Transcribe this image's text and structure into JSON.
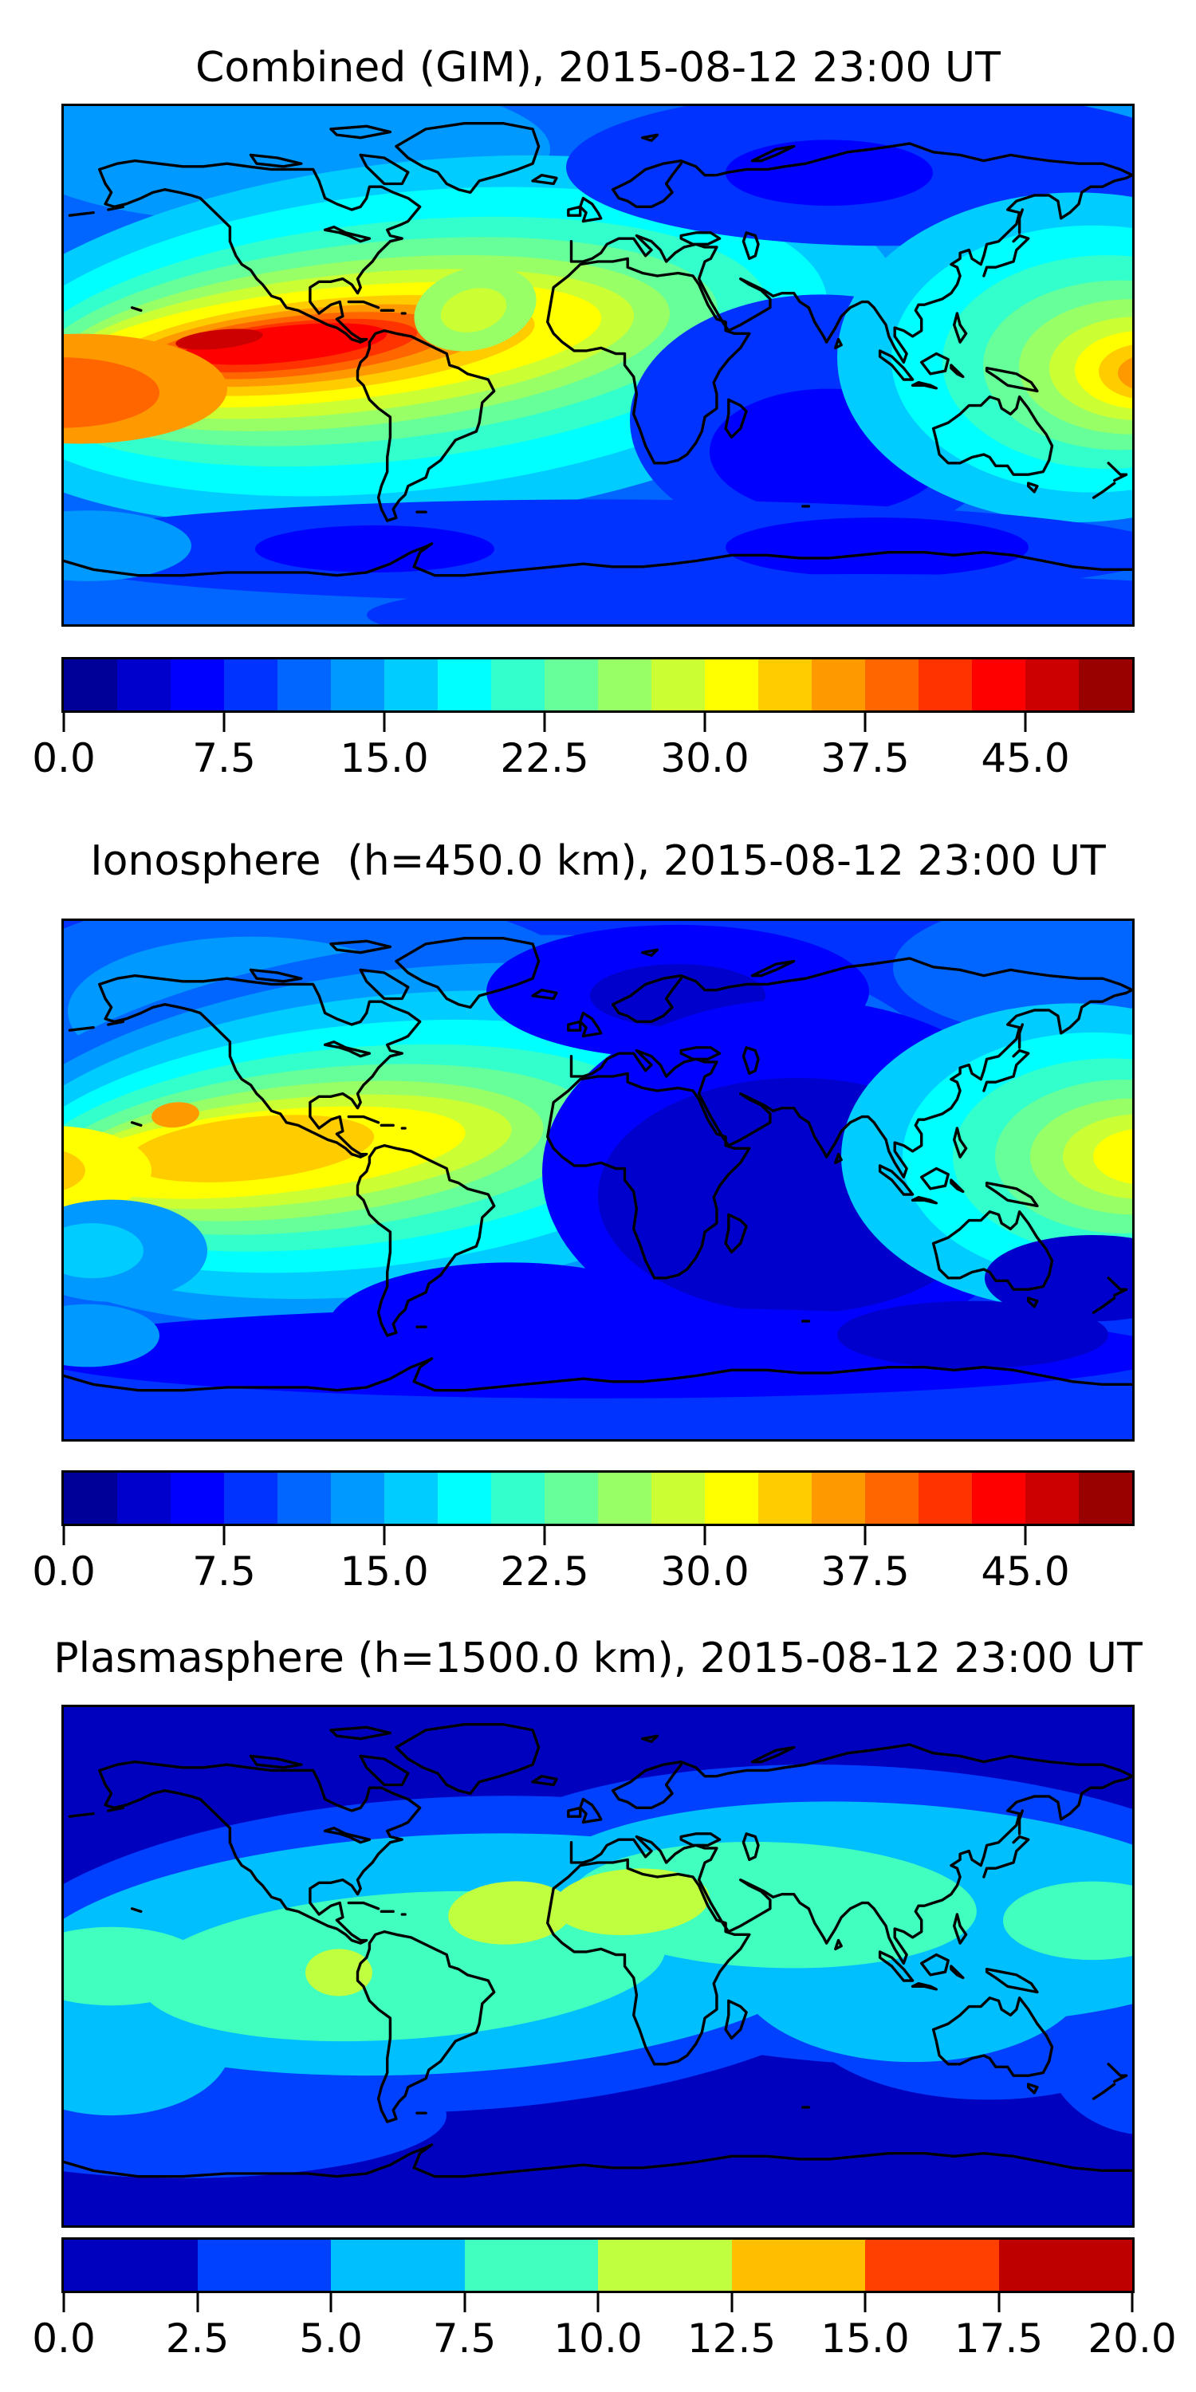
{
  "figure": {
    "background_color": "#ffffff",
    "colormap": "jet",
    "map_outline_color": "#000000"
  },
  "panels": [
    {
      "title": "Combined (GIM), 2015-08-12 23:00 UT",
      "colorbar": {
        "min": 0,
        "max": 50,
        "tick_values": [
          0,
          7.5,
          15,
          22.5,
          30,
          37.5,
          45
        ],
        "tick_labels": [
          "0.0",
          "7.5",
          "15.0",
          "22.5",
          "30.0",
          "37.5",
          "45.0"
        ],
        "n_segments": 20,
        "segment_colors": [
          "#000099",
          "#0000cc",
          "#0000ff",
          "#0033ff",
          "#0066ff",
          "#0099ff",
          "#00ccff",
          "#00ffff",
          "#33ffcc",
          "#66ff99",
          "#99ff66",
          "#ccff33",
          "#ffff00",
          "#ffcc00",
          "#ff9900",
          "#ff6600",
          "#ff3300",
          "#ff0000",
          "#cc0000",
          "#990000"
        ]
      }
    },
    {
      "title": "Ionosphere  (h=450.0 km), 2015-08-12 23:00 UT",
      "colorbar": {
        "min": 0,
        "max": 50,
        "tick_values": [
          0,
          7.5,
          15,
          22.5,
          30,
          37.5,
          45
        ],
        "tick_labels": [
          "0.0",
          "7.5",
          "15.0",
          "22.5",
          "30.0",
          "37.5",
          "45.0"
        ],
        "n_segments": 20,
        "segment_colors": [
          "#000099",
          "#0000cc",
          "#0000ff",
          "#0033ff",
          "#0066ff",
          "#0099ff",
          "#00ccff",
          "#00ffff",
          "#33ffcc",
          "#66ff99",
          "#99ff66",
          "#ccff33",
          "#ffff00",
          "#ffcc00",
          "#ff9900",
          "#ff6600",
          "#ff3300",
          "#ff0000",
          "#cc0000",
          "#990000"
        ]
      }
    },
    {
      "title": "Plasmasphere (h=1500.0 km), 2015-08-12 23:00 UT",
      "colorbar": {
        "min": 0,
        "max": 20,
        "tick_values": [
          0,
          2.5,
          5,
          7.5,
          10,
          12.5,
          15,
          17.5,
          20
        ],
        "tick_labels": [
          "0.0",
          "2.5",
          "5.0",
          "7.5",
          "10.0",
          "12.5",
          "15.0",
          "17.5",
          "20.0"
        ],
        "n_segments": 8,
        "segment_colors": [
          "#0000bf",
          "#0040ff",
          "#00bfff",
          "#40ffbf",
          "#bfff40",
          "#ffbf00",
          "#ff4000",
          "#bf0000"
        ]
      }
    }
  ],
  "chart_data": [
    {
      "type": "heatmap",
      "subtype": "filled_contour_world_map",
      "title": "Combined (GIM), 2015-08-12 23:00 UT",
      "projection": "equirectangular",
      "lon_range": [
        -180,
        180
      ],
      "lat_range": [
        -90,
        90
      ],
      "value_range": [
        0,
        50
      ],
      "contour_step": 2.5,
      "n_levels": 20,
      "colormap": "jet",
      "colorbar_ticks": [
        0,
        7.5,
        15,
        22.5,
        30,
        37.5,
        45
      ],
      "legend_position": "bottom",
      "grid": false,
      "features": [
        {
          "label": "primary maximum, eastern equatorial Pacific west of South America",
          "lon": -100,
          "lat": 5,
          "peak_value_approx": 46
        },
        {
          "label": "secondary maximum, western equatorial Pacific at map edge",
          "lon": 180,
          "lat": -2,
          "peak_value_approx": 38
        },
        {
          "label": "moderate ridge, equatorial Atlantic",
          "lon": -40,
          "lat": 17,
          "value_approx": 27
        },
        {
          "label": "minimum band, southern Indian Ocean / high southern latitudes",
          "lon": 95,
          "lat": -63,
          "value_approx": 4
        },
        {
          "label": "minimum, northern Eurasia",
          "lon": 80,
          "lat": 68,
          "value_approx": 6
        }
      ]
    },
    {
      "type": "heatmap",
      "subtype": "filled_contour_world_map",
      "title": "Ionosphere  (h=450.0 km), 2015-08-12 23:00 UT",
      "projection": "equirectangular",
      "lon_range": [
        -180,
        180
      ],
      "lat_range": [
        -90,
        90
      ],
      "value_range": [
        0,
        50
      ],
      "contour_step": 2.5,
      "n_levels": 20,
      "colormap": "jet",
      "colorbar_ticks": [
        0,
        7.5,
        15,
        22.5,
        30,
        37.5,
        45
      ],
      "legend_position": "bottom",
      "grid": false,
      "features": [
        {
          "label": "primary maximum, eastern equatorial Pacific",
          "lon": -110,
          "lat": 8,
          "peak_value_approx": 36
        },
        {
          "label": "secondary maximum, western equatorial Pacific at map edge",
          "lon": 180,
          "lat": 0,
          "peak_value_approx": 31
        },
        {
          "label": "broad minimum, Indian Ocean through central Africa",
          "lon": 70,
          "lat": -5,
          "value_approx": 3
        },
        {
          "label": "minimum, Europe",
          "lon": 25,
          "lat": 62,
          "value_approx": 4
        }
      ]
    },
    {
      "type": "heatmap",
      "subtype": "filled_contour_world_map",
      "title": "Plasmasphere (h=1500.0 km), 2015-08-12 23:00 UT",
      "projection": "equirectangular",
      "lon_range": [
        -180,
        180
      ],
      "lat_range": [
        -90,
        90
      ],
      "value_range": [
        0,
        20
      ],
      "contour_step": 2.5,
      "n_levels": 8,
      "colormap": "jet",
      "colorbar_ticks": [
        0,
        2.5,
        5,
        7.5,
        10,
        12.5,
        15,
        17.5,
        20
      ],
      "legend_position": "bottom",
      "grid": false,
      "features": [
        {
          "label": "equatorial band maximum, tropical Atlantic",
          "lon": -25,
          "lat": 17,
          "peak_value_approx": 11
        },
        {
          "label": "equatorial band maximum, north Africa / Arabia",
          "lon": 12,
          "lat": 22,
          "peak_value_approx": 11
        },
        {
          "label": "local maximum, eastern Pacific west of Peru",
          "lon": -88,
          "lat": -3,
          "peak_value_approx": 11
        },
        {
          "label": "elevated band along geomagnetic equator",
          "lat_span": [
            -25,
            35
          ],
          "value_approx": 8.5
        },
        {
          "label": "polar minima north and south",
          "value_approx": 1.5
        }
      ]
    }
  ]
}
